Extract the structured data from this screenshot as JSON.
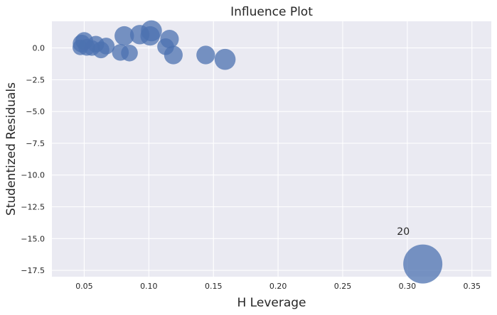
{
  "chart_data": {
    "type": "scatter",
    "title": "Influence Plot",
    "xlabel": "H Leverage",
    "ylabel": "Studentized Residuals",
    "xlim": [
      0.025,
      0.365
    ],
    "ylim": [
      -18.0,
      2.1
    ],
    "xticks": [
      0.05,
      0.1,
      0.15,
      0.2,
      0.25,
      0.3,
      0.35
    ],
    "xtick_labels": [
      "0.05",
      "0.10",
      "0.15",
      "0.20",
      "0.25",
      "0.30",
      "0.35"
    ],
    "yticks": [
      0.0,
      -2.5,
      -5.0,
      -7.5,
      -10.0,
      -12.5,
      -15.0,
      -17.5
    ],
    "ytick_labels": [
      "0.0",
      "−2.5",
      "−5.0",
      "−7.5",
      "−10.0",
      "−12.5",
      "−15.0",
      "−17.5"
    ],
    "grid": true,
    "colors": {
      "background": "#eaeaf2",
      "grid": "#ffffff",
      "point": "#4c72b0"
    },
    "points": [
      {
        "x": 0.047,
        "y": 0.05,
        "size": 0.08
      },
      {
        "x": 0.048,
        "y": 0.35,
        "size": 0.12
      },
      {
        "x": 0.05,
        "y": 0.55,
        "size": 0.12
      },
      {
        "x": 0.052,
        "y": 0.05,
        "size": 0.1
      },
      {
        "x": 0.056,
        "y": 0.0,
        "size": 0.08
      },
      {
        "x": 0.059,
        "y": 0.3,
        "size": 0.1
      },
      {
        "x": 0.063,
        "y": -0.15,
        "size": 0.1
      },
      {
        "x": 0.067,
        "y": 0.15,
        "size": 0.1
      },
      {
        "x": 0.078,
        "y": -0.35,
        "size": 0.1
      },
      {
        "x": 0.081,
        "y": 0.95,
        "size": 0.16
      },
      {
        "x": 0.085,
        "y": -0.4,
        "size": 0.1
      },
      {
        "x": 0.093,
        "y": 1.05,
        "size": 0.16
      },
      {
        "x": 0.101,
        "y": 0.95,
        "size": 0.16
      },
      {
        "x": 0.102,
        "y": 1.35,
        "size": 0.2
      },
      {
        "x": 0.113,
        "y": 0.1,
        "size": 0.1
      },
      {
        "x": 0.116,
        "y": 0.7,
        "size": 0.14
      },
      {
        "x": 0.119,
        "y": -0.55,
        "size": 0.14
      },
      {
        "x": 0.144,
        "y": -0.55,
        "size": 0.14
      },
      {
        "x": 0.159,
        "y": -0.9,
        "size": 0.2
      },
      {
        "x": 0.312,
        "y": -17.0,
        "size": 1.0
      }
    ],
    "annotations": [
      {
        "text": "20",
        "x": 0.292,
        "y": -14.7
      }
    ]
  }
}
